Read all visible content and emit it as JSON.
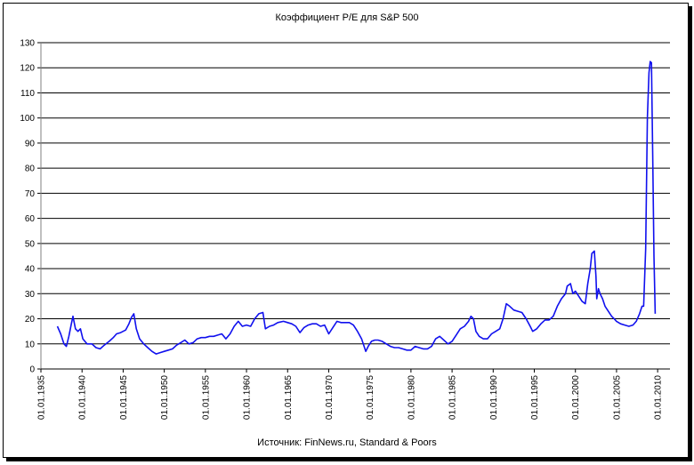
{
  "chart_data": {
    "type": "line",
    "title": "Коэффициент P/E для S&P 500",
    "source": "Источник: FinNews.ru, Standard & Poors",
    "ylim": [
      0,
      130
    ],
    "yticks": [
      0,
      10,
      20,
      30,
      40,
      50,
      60,
      70,
      80,
      90,
      100,
      110,
      120,
      130
    ],
    "xlim": [
      1935,
      2011.5
    ],
    "xticks": [
      {
        "year": 1935,
        "label": "01.01.1935"
      },
      {
        "year": 1940,
        "label": "01.01.1940"
      },
      {
        "year": 1945,
        "label": "01.01.1945"
      },
      {
        "year": 1950,
        "label": "01.01.1950"
      },
      {
        "year": 1955,
        "label": "01.01.1955"
      },
      {
        "year": 1960,
        "label": "01.01.1960"
      },
      {
        "year": 1965,
        "label": "01.01.1965"
      },
      {
        "year": 1970,
        "label": "01.01.1970"
      },
      {
        "year": 1975,
        "label": "01.01.1975"
      },
      {
        "year": 1980,
        "label": "01.01.1980"
      },
      {
        "year": 1985,
        "label": "01.01.1985"
      },
      {
        "year": 1990,
        "label": "01.01.1990"
      },
      {
        "year": 1995,
        "label": "01.01.1995"
      },
      {
        "year": 2000,
        "label": "01.01.2000"
      },
      {
        "year": 2005,
        "label": "01.01.2005"
      },
      {
        "year": 2010,
        "label": "01.01.2010"
      }
    ],
    "grid": "horizontal",
    "legend": "none",
    "series": [
      {
        "color": "#1010ee",
        "points": [
          [
            1937.0,
            17
          ],
          [
            1937.4,
            14
          ],
          [
            1937.8,
            10
          ],
          [
            1938.1,
            9
          ],
          [
            1938.4,
            13
          ],
          [
            1938.7,
            18
          ],
          [
            1938.9,
            21
          ],
          [
            1939.2,
            16
          ],
          [
            1939.5,
            15
          ],
          [
            1939.8,
            16
          ],
          [
            1940.1,
            12
          ],
          [
            1940.6,
            10
          ],
          [
            1941.2,
            10
          ],
          [
            1941.7,
            8.5
          ],
          [
            1942.2,
            8
          ],
          [
            1942.7,
            9.5
          ],
          [
            1943.3,
            11
          ],
          [
            1943.8,
            12.5
          ],
          [
            1944.2,
            14
          ],
          [
            1944.7,
            14.5
          ],
          [
            1945.3,
            15.5
          ],
          [
            1945.7,
            18
          ],
          [
            1946.0,
            20.5
          ],
          [
            1946.3,
            22
          ],
          [
            1946.6,
            16
          ],
          [
            1947.0,
            12
          ],
          [
            1947.5,
            10
          ],
          [
            1948.0,
            8.5
          ],
          [
            1948.5,
            7
          ],
          [
            1949.0,
            6
          ],
          [
            1949.5,
            6.5
          ],
          [
            1950.0,
            7
          ],
          [
            1950.5,
            7.5
          ],
          [
            1951.0,
            8
          ],
          [
            1951.5,
            9.5
          ],
          [
            1952.0,
            10.5
          ],
          [
            1952.5,
            11.5
          ],
          [
            1953.0,
            10
          ],
          [
            1953.5,
            10.5
          ],
          [
            1954.0,
            12
          ],
          [
            1954.5,
            12.5
          ],
          [
            1955.0,
            12.5
          ],
          [
            1955.5,
            13
          ],
          [
            1956.0,
            13
          ],
          [
            1956.5,
            13.5
          ],
          [
            1957.0,
            14
          ],
          [
            1957.5,
            12
          ],
          [
            1958.0,
            14
          ],
          [
            1958.5,
            17
          ],
          [
            1959.0,
            19
          ],
          [
            1959.5,
            17
          ],
          [
            1960.0,
            17.5
          ],
          [
            1960.5,
            17
          ],
          [
            1961.0,
            20
          ],
          [
            1961.5,
            22
          ],
          [
            1962.0,
            22.5
          ],
          [
            1962.3,
            16
          ],
          [
            1962.8,
            17
          ],
          [
            1963.3,
            17.5
          ],
          [
            1963.8,
            18.5
          ],
          [
            1964.5,
            19
          ],
          [
            1965.0,
            18.5
          ],
          [
            1965.5,
            18
          ],
          [
            1966.0,
            17
          ],
          [
            1966.5,
            14.5
          ],
          [
            1967.0,
            16.5
          ],
          [
            1967.5,
            17.5
          ],
          [
            1968.0,
            18
          ],
          [
            1968.5,
            18
          ],
          [
            1969.0,
            17
          ],
          [
            1969.5,
            17.5
          ],
          [
            1970.0,
            14
          ],
          [
            1970.5,
            16.5
          ],
          [
            1971.0,
            19
          ],
          [
            1971.5,
            18.5
          ],
          [
            1972.0,
            18.5
          ],
          [
            1972.5,
            18.5
          ],
          [
            1973.0,
            17.5
          ],
          [
            1973.5,
            15
          ],
          [
            1974.0,
            12
          ],
          [
            1974.5,
            7
          ],
          [
            1974.8,
            9
          ],
          [
            1975.2,
            11
          ],
          [
            1975.6,
            11.5
          ],
          [
            1976.0,
            11.5
          ],
          [
            1976.5,
            11
          ],
          [
            1977.0,
            10
          ],
          [
            1977.5,
            9
          ],
          [
            1978.0,
            8.5
          ],
          [
            1978.5,
            8.5
          ],
          [
            1979.0,
            8
          ],
          [
            1979.5,
            7.5
          ],
          [
            1980.0,
            7.5
          ],
          [
            1980.5,
            9
          ],
          [
            1981.0,
            8.5
          ],
          [
            1981.5,
            8
          ],
          [
            1982.0,
            8
          ],
          [
            1982.5,
            9
          ],
          [
            1983.0,
            12
          ],
          [
            1983.5,
            13
          ],
          [
            1984.0,
            11.5
          ],
          [
            1984.5,
            10
          ],
          [
            1985.0,
            11
          ],
          [
            1985.5,
            13.5
          ],
          [
            1986.0,
            16
          ],
          [
            1986.5,
            17
          ],
          [
            1987.0,
            19
          ],
          [
            1987.3,
            21
          ],
          [
            1987.6,
            20
          ],
          [
            1987.9,
            15
          ],
          [
            1988.3,
            13
          ],
          [
            1988.8,
            12
          ],
          [
            1989.3,
            12
          ],
          [
            1989.8,
            14
          ],
          [
            1990.3,
            15
          ],
          [
            1990.8,
            16
          ],
          [
            1991.2,
            20
          ],
          [
            1991.6,
            26
          ],
          [
            1992.0,
            25
          ],
          [
            1992.5,
            23.5
          ],
          [
            1993.0,
            23
          ],
          [
            1993.5,
            22.5
          ],
          [
            1994.0,
            20
          ],
          [
            1994.5,
            17
          ],
          [
            1994.8,
            15
          ],
          [
            1995.3,
            16
          ],
          [
            1995.8,
            18
          ],
          [
            1996.3,
            19.5
          ],
          [
            1996.8,
            19.5
          ],
          [
            1997.3,
            21
          ],
          [
            1997.8,
            25
          ],
          [
            1998.3,
            28
          ],
          [
            1998.8,
            30
          ],
          [
            1999.0,
            33
          ],
          [
            1999.4,
            34
          ],
          [
            1999.7,
            30
          ],
          [
            2000.0,
            31
          ],
          [
            2000.4,
            29
          ],
          [
            2000.8,
            27
          ],
          [
            2001.2,
            26
          ],
          [
            2001.5,
            34
          ],
          [
            2001.8,
            40
          ],
          [
            2002.0,
            46
          ],
          [
            2002.3,
            47
          ],
          [
            2002.5,
            37
          ],
          [
            2002.6,
            28
          ],
          [
            2002.8,
            32
          ],
          [
            2003.0,
            30
          ],
          [
            2003.3,
            28
          ],
          [
            2003.6,
            25
          ],
          [
            2004.0,
            23
          ],
          [
            2004.4,
            21
          ],
          [
            2004.7,
            20
          ],
          [
            2005.0,
            19
          ],
          [
            2005.5,
            18
          ],
          [
            2006.0,
            17.5
          ],
          [
            2006.5,
            17
          ],
          [
            2007.0,
            17.5
          ],
          [
            2007.4,
            19
          ],
          [
            2007.8,
            22
          ],
          [
            2008.1,
            25
          ],
          [
            2008.3,
            25
          ],
          [
            2008.55,
            48
          ],
          [
            2008.75,
            100
          ],
          [
            2008.95,
            118
          ],
          [
            2009.1,
            122.5
          ],
          [
            2009.25,
            122
          ],
          [
            2009.4,
            85
          ],
          [
            2009.55,
            45
          ],
          [
            2009.7,
            22
          ]
        ]
      }
    ]
  }
}
